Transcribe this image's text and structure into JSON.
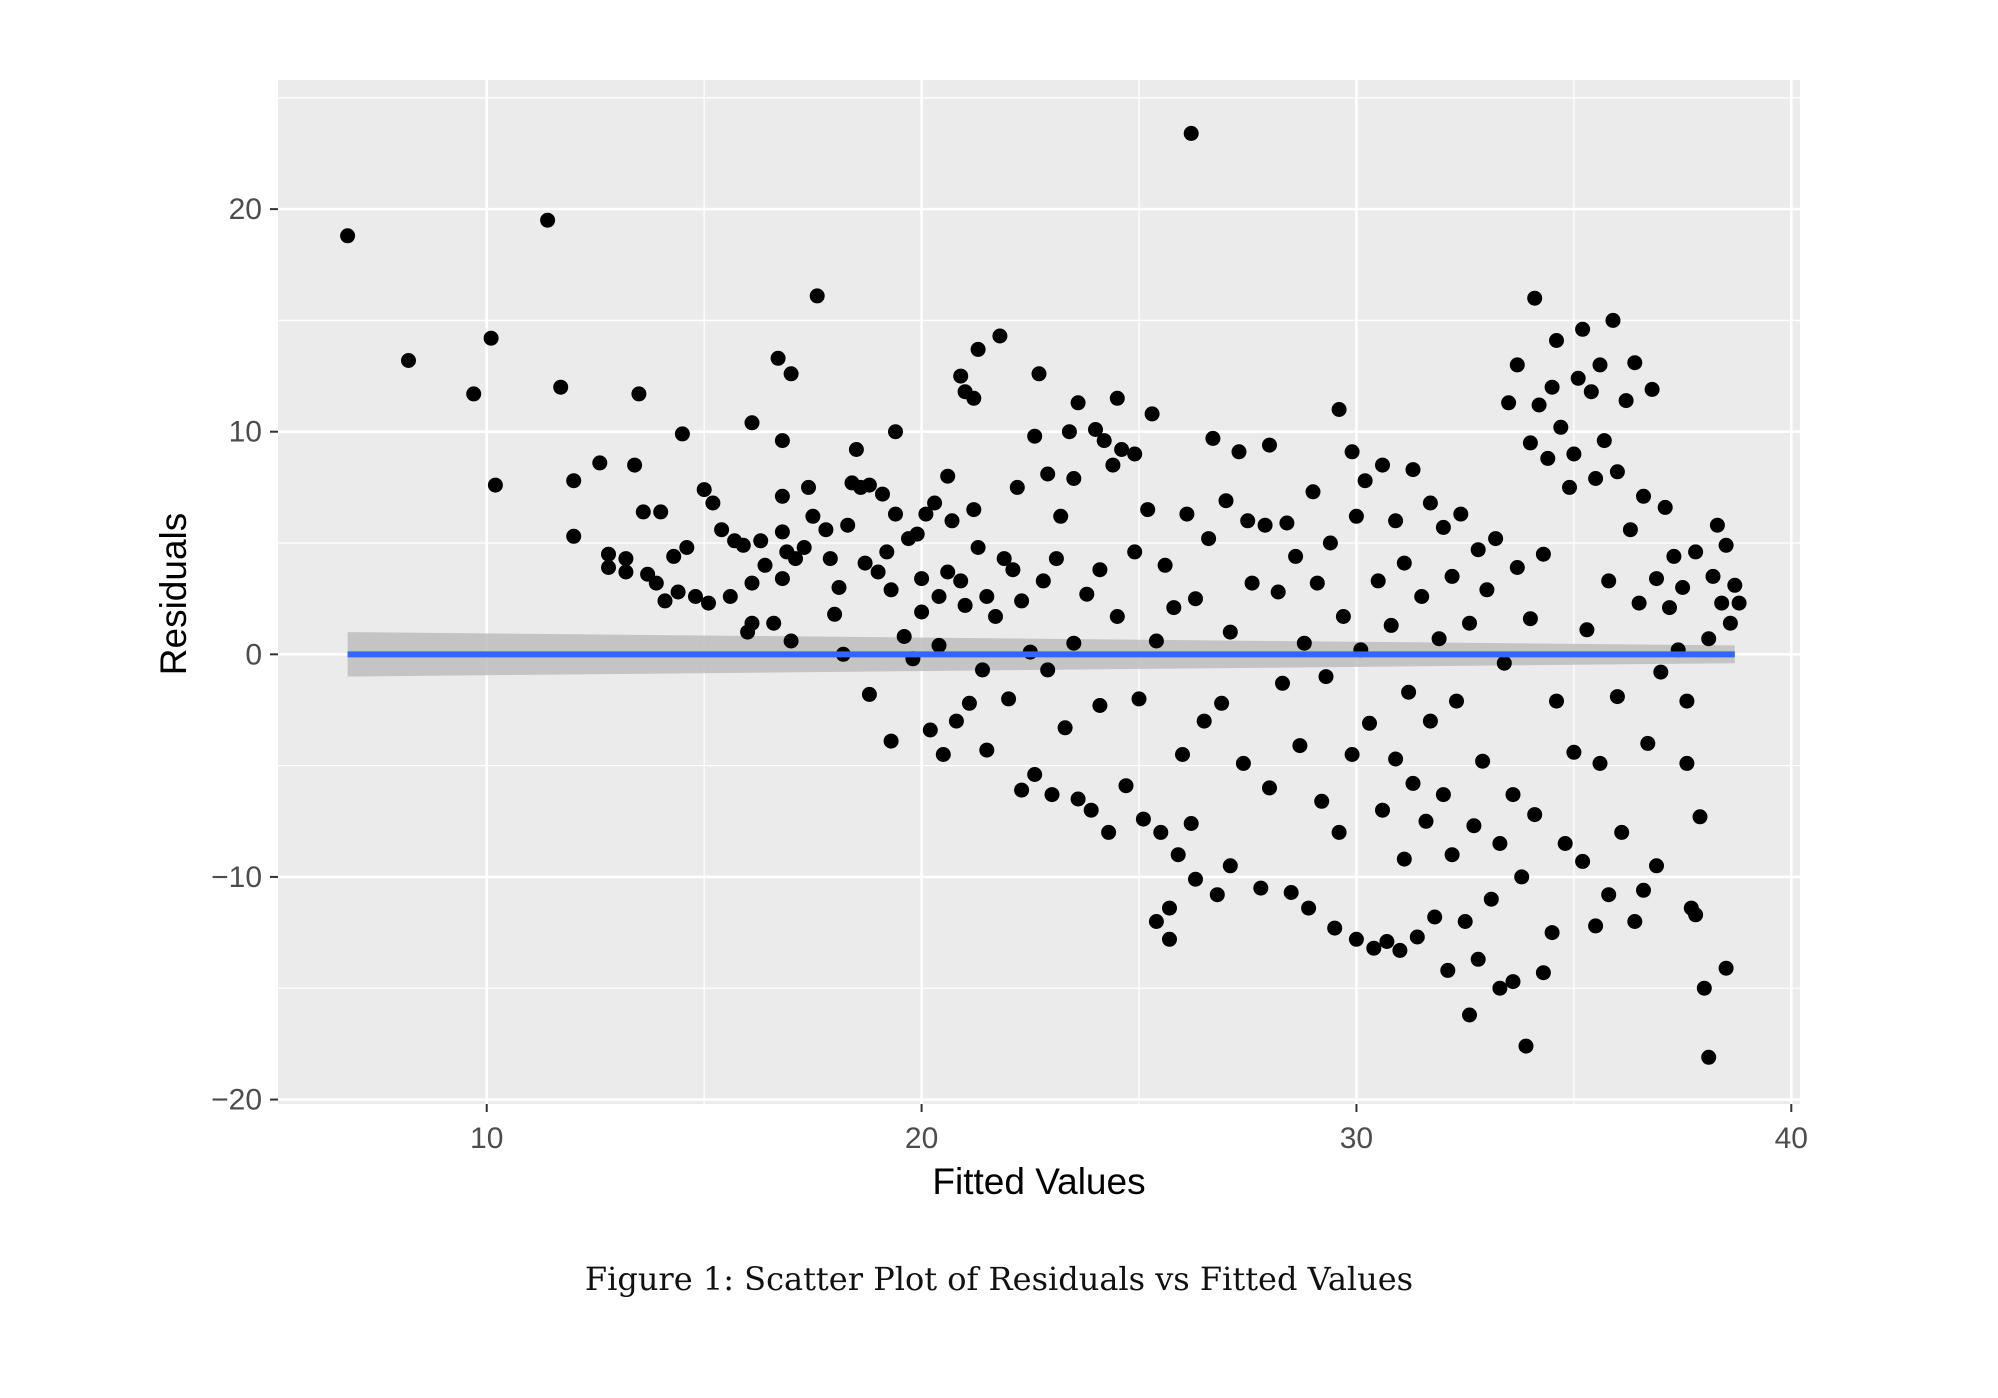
{
  "figure": {
    "caption": "Figure 1: Scatter Plot of Residuals vs Fitted Values"
  },
  "chart_data": {
    "type": "scatter",
    "title": "",
    "xlabel": "Fitted Values",
    "ylabel": "Residuals",
    "xlim": [
      5.2,
      40.2
    ],
    "ylim": [
      -20.2,
      25.8
    ],
    "xticks": [
      10,
      20,
      30,
      40
    ],
    "xtick_labels": [
      "10",
      "20",
      "30",
      "40"
    ],
    "yticks": [
      -20,
      -10,
      0,
      10,
      20
    ],
    "ytick_labels": [
      "−20",
      "−10",
      "0",
      "10",
      "20"
    ],
    "grid": true,
    "legend": "none",
    "colors": {
      "panel": "#ebebeb",
      "grid": "#ffffff",
      "points": "#000000",
      "fit_line": "#3366ff",
      "confidence_band": "#bdbdbd"
    },
    "fit_line": {
      "x": [
        6.8,
        38.7
      ],
      "y": [
        0,
        0
      ],
      "band_upper": [
        1.0,
        0.4
      ],
      "band_lower": [
        -1.0,
        -0.4
      ]
    },
    "series": [
      {
        "points": [
          [
            6.8,
            18.8
          ],
          [
            11.4,
            19.5
          ],
          [
            26.2,
            23.4
          ],
          [
            8.2,
            13.2
          ],
          [
            9.7,
            11.7
          ],
          [
            10.1,
            14.2
          ],
          [
            10.2,
            7.6
          ],
          [
            11.7,
            12.0
          ],
          [
            12.0,
            7.8
          ],
          [
            12.0,
            5.3
          ],
          [
            12.6,
            8.6
          ],
          [
            12.8,
            4.5
          ],
          [
            12.8,
            3.9
          ],
          [
            13.2,
            4.3
          ],
          [
            13.2,
            3.7
          ],
          [
            13.4,
            8.5
          ],
          [
            13.5,
            11.7
          ],
          [
            13.6,
            6.4
          ],
          [
            13.7,
            3.6
          ],
          [
            13.9,
            3.2
          ],
          [
            14.0,
            6.4
          ],
          [
            14.1,
            2.4
          ],
          [
            14.3,
            4.4
          ],
          [
            14.4,
            2.8
          ],
          [
            14.5,
            9.9
          ],
          [
            14.6,
            4.8
          ],
          [
            14.8,
            2.6
          ],
          [
            15.0,
            7.4
          ],
          [
            15.1,
            2.3
          ],
          [
            15.2,
            6.8
          ],
          [
            15.4,
            5.6
          ],
          [
            15.6,
            2.6
          ],
          [
            15.7,
            5.1
          ],
          [
            15.9,
            4.9
          ],
          [
            16.0,
            1.0
          ],
          [
            16.1,
            10.4
          ],
          [
            16.1,
            3.2
          ],
          [
            16.1,
            1.4
          ],
          [
            16.3,
            5.1
          ],
          [
            16.4,
            4.0
          ],
          [
            16.6,
            1.4
          ],
          [
            16.7,
            13.3
          ],
          [
            16.8,
            9.6
          ],
          [
            16.8,
            7.1
          ],
          [
            16.8,
            5.5
          ],
          [
            16.8,
            3.4
          ],
          [
            16.9,
            4.6
          ],
          [
            17.0,
            12.6
          ],
          [
            17.0,
            0.6
          ],
          [
            17.1,
            4.3
          ],
          [
            17.3,
            4.8
          ],
          [
            17.4,
            7.5
          ],
          [
            17.5,
            6.2
          ],
          [
            17.6,
            16.1
          ],
          [
            17.8,
            5.6
          ],
          [
            17.9,
            4.3
          ],
          [
            18.0,
            1.8
          ],
          [
            18.1,
            3.0
          ],
          [
            18.2,
            0.0
          ],
          [
            18.3,
            5.8
          ],
          [
            18.4,
            7.7
          ],
          [
            18.5,
            9.2
          ],
          [
            18.6,
            7.5
          ],
          [
            18.7,
            4.1
          ],
          [
            18.8,
            7.6
          ],
          [
            18.8,
            -1.8
          ],
          [
            19.0,
            3.7
          ],
          [
            19.1,
            7.2
          ],
          [
            19.2,
            4.6
          ],
          [
            19.3,
            2.9
          ],
          [
            19.3,
            -3.9
          ],
          [
            19.4,
            10.0
          ],
          [
            19.4,
            6.3
          ],
          [
            19.6,
            0.8
          ],
          [
            19.7,
            5.2
          ],
          [
            19.8,
            -0.2
          ],
          [
            19.9,
            5.4
          ],
          [
            20.0,
            3.4
          ],
          [
            20.0,
            1.9
          ],
          [
            20.1,
            6.3
          ],
          [
            20.2,
            -3.4
          ],
          [
            20.3,
            6.8
          ],
          [
            20.4,
            2.6
          ],
          [
            20.4,
            0.4
          ],
          [
            20.5,
            -4.5
          ],
          [
            20.6,
            8.0
          ],
          [
            20.6,
            3.7
          ],
          [
            20.7,
            6.0
          ],
          [
            20.8,
            -3.0
          ],
          [
            20.9,
            12.5
          ],
          [
            20.9,
            3.3
          ],
          [
            21.0,
            11.8
          ],
          [
            21.0,
            2.2
          ],
          [
            21.1,
            -2.2
          ],
          [
            21.2,
            6.5
          ],
          [
            21.2,
            11.5
          ],
          [
            21.3,
            13.7
          ],
          [
            21.3,
            4.8
          ],
          [
            21.4,
            -0.7
          ],
          [
            21.5,
            2.6
          ],
          [
            21.5,
            -4.3
          ],
          [
            21.7,
            1.7
          ],
          [
            21.8,
            14.3
          ],
          [
            21.9,
            4.3
          ],
          [
            22.0,
            -2.0
          ],
          [
            22.1,
            3.8
          ],
          [
            22.2,
            7.5
          ],
          [
            22.3,
            2.4
          ],
          [
            22.3,
            -6.1
          ],
          [
            22.5,
            0.1
          ],
          [
            22.6,
            9.8
          ],
          [
            22.6,
            -5.4
          ],
          [
            22.7,
            12.6
          ],
          [
            22.8,
            3.3
          ],
          [
            22.9,
            8.1
          ],
          [
            22.9,
            -0.7
          ],
          [
            23.0,
            -6.3
          ],
          [
            23.1,
            4.3
          ],
          [
            23.2,
            6.2
          ],
          [
            23.3,
            -3.3
          ],
          [
            23.4,
            10.0
          ],
          [
            23.5,
            7.9
          ],
          [
            23.5,
            0.5
          ],
          [
            23.6,
            11.3
          ],
          [
            23.6,
            -6.5
          ],
          [
            23.8,
            2.7
          ],
          [
            23.9,
            -7.0
          ],
          [
            24.0,
            10.1
          ],
          [
            24.1,
            3.8
          ],
          [
            24.1,
            -2.3
          ],
          [
            24.2,
            9.6
          ],
          [
            24.3,
            -8.0
          ],
          [
            24.4,
            8.5
          ],
          [
            24.5,
            11.5
          ],
          [
            24.5,
            1.7
          ],
          [
            24.6,
            9.2
          ],
          [
            24.7,
            -5.9
          ],
          [
            24.9,
            9.0
          ],
          [
            24.9,
            4.6
          ],
          [
            25.0,
            -2.0
          ],
          [
            25.1,
            -7.4
          ],
          [
            25.2,
            6.5
          ],
          [
            25.3,
            10.8
          ],
          [
            25.4,
            0.6
          ],
          [
            25.4,
            -12.0
          ],
          [
            25.5,
            -8.0
          ],
          [
            25.6,
            4.0
          ],
          [
            25.7,
            -11.4
          ],
          [
            25.7,
            -12.8
          ],
          [
            25.8,
            2.1
          ],
          [
            25.9,
            -9.0
          ],
          [
            26.0,
            -4.5
          ],
          [
            26.1,
            6.3
          ],
          [
            26.2,
            -7.6
          ],
          [
            26.3,
            2.5
          ],
          [
            26.3,
            -10.1
          ],
          [
            26.5,
            -3.0
          ],
          [
            26.6,
            5.2
          ],
          [
            26.7,
            9.7
          ],
          [
            26.8,
            -10.8
          ],
          [
            26.9,
            -2.2
          ],
          [
            27.0,
            6.9
          ],
          [
            27.1,
            1.0
          ],
          [
            27.1,
            -9.5
          ],
          [
            27.3,
            9.1
          ],
          [
            27.4,
            -4.9
          ],
          [
            27.5,
            6.0
          ],
          [
            27.6,
            3.2
          ],
          [
            27.8,
            -10.5
          ],
          [
            27.9,
            5.8
          ],
          [
            28.0,
            9.4
          ],
          [
            28.0,
            -6.0
          ],
          [
            28.2,
            2.8
          ],
          [
            28.3,
            -1.3
          ],
          [
            28.4,
            5.9
          ],
          [
            28.5,
            -10.7
          ],
          [
            28.6,
            4.4
          ],
          [
            28.7,
            -4.1
          ],
          [
            28.8,
            0.5
          ],
          [
            28.9,
            -11.4
          ],
          [
            29.0,
            7.3
          ],
          [
            29.1,
            3.2
          ],
          [
            29.2,
            -6.6
          ],
          [
            29.3,
            -1.0
          ],
          [
            29.4,
            5.0
          ],
          [
            29.5,
            -12.3
          ],
          [
            29.6,
            11.0
          ],
          [
            29.6,
            -8.0
          ],
          [
            29.7,
            1.7
          ],
          [
            29.9,
            9.1
          ],
          [
            29.9,
            -4.5
          ],
          [
            30.0,
            6.2
          ],
          [
            30.0,
            -12.8
          ],
          [
            30.1,
            0.2
          ],
          [
            30.2,
            7.8
          ],
          [
            30.3,
            -3.1
          ],
          [
            30.4,
            -13.2
          ],
          [
            30.5,
            3.3
          ],
          [
            30.6,
            8.5
          ],
          [
            30.6,
            -7.0
          ],
          [
            30.7,
            -12.9
          ],
          [
            30.8,
            1.3
          ],
          [
            30.9,
            6.0
          ],
          [
            30.9,
            -4.7
          ],
          [
            31.0,
            -13.3
          ],
          [
            31.1,
            4.1
          ],
          [
            31.1,
            -9.2
          ],
          [
            31.2,
            -1.7
          ],
          [
            31.3,
            8.3
          ],
          [
            31.3,
            -5.8
          ],
          [
            31.4,
            -12.7
          ],
          [
            31.5,
            2.6
          ],
          [
            31.6,
            -7.5
          ],
          [
            31.7,
            6.8
          ],
          [
            31.7,
            -3.0
          ],
          [
            31.8,
            -11.8
          ],
          [
            31.9,
            0.7
          ],
          [
            32.0,
            5.7
          ],
          [
            32.0,
            -6.3
          ],
          [
            32.1,
            -14.2
          ],
          [
            32.2,
            3.5
          ],
          [
            32.2,
            -9.0
          ],
          [
            32.3,
            -2.1
          ],
          [
            32.4,
            6.3
          ],
          [
            32.5,
            -12.0
          ],
          [
            32.6,
            -16.2
          ],
          [
            32.6,
            1.4
          ],
          [
            32.7,
            -7.7
          ],
          [
            32.8,
            4.7
          ],
          [
            32.8,
            -13.7
          ],
          [
            32.9,
            -4.8
          ],
          [
            33.0,
            2.9
          ],
          [
            33.1,
            -11.0
          ],
          [
            33.2,
            5.2
          ],
          [
            33.3,
            -8.5
          ],
          [
            33.3,
            -15.0
          ],
          [
            33.4,
            -0.4
          ],
          [
            33.5,
            11.3
          ],
          [
            33.6,
            -6.3
          ],
          [
            33.6,
            -14.7
          ],
          [
            33.7,
            13.0
          ],
          [
            33.7,
            3.9
          ],
          [
            33.8,
            -10.0
          ],
          [
            33.9,
            -17.6
          ],
          [
            34.0,
            1.6
          ],
          [
            34.0,
            9.5
          ],
          [
            34.1,
            16.0
          ],
          [
            34.1,
            -7.2
          ],
          [
            34.2,
            11.2
          ],
          [
            34.3,
            -14.3
          ],
          [
            34.3,
            4.5
          ],
          [
            34.4,
            8.8
          ],
          [
            34.5,
            -12.5
          ],
          [
            34.5,
            12.0
          ],
          [
            34.6,
            14.1
          ],
          [
            34.6,
            -2.1
          ],
          [
            34.7,
            10.2
          ],
          [
            34.8,
            -8.5
          ],
          [
            34.9,
            7.5
          ],
          [
            35.0,
            9.0
          ],
          [
            35.0,
            -4.4
          ],
          [
            35.1,
            12.4
          ],
          [
            35.2,
            14.6
          ],
          [
            35.2,
            -9.3
          ],
          [
            35.3,
            1.1
          ],
          [
            35.4,
            11.8
          ],
          [
            35.5,
            7.9
          ],
          [
            35.5,
            -12.2
          ],
          [
            35.6,
            13.0
          ],
          [
            35.6,
            -4.9
          ],
          [
            35.7,
            9.6
          ],
          [
            35.8,
            3.3
          ],
          [
            35.8,
            -10.8
          ],
          [
            35.9,
            15.0
          ],
          [
            36.0,
            8.2
          ],
          [
            36.0,
            -1.9
          ],
          [
            36.1,
            -8.0
          ],
          [
            36.2,
            11.4
          ],
          [
            36.3,
            5.6
          ],
          [
            36.4,
            -12.0
          ],
          [
            36.4,
            13.1
          ],
          [
            36.5,
            2.3
          ],
          [
            36.6,
            7.1
          ],
          [
            36.6,
            -10.6
          ],
          [
            36.7,
            -4.0
          ],
          [
            36.8,
            11.9
          ],
          [
            36.9,
            3.4
          ],
          [
            36.9,
            -9.5
          ],
          [
            37.0,
            -0.8
          ],
          [
            37.1,
            6.6
          ],
          [
            37.2,
            2.1
          ],
          [
            37.3,
            4.4
          ],
          [
            37.4,
            0.2
          ],
          [
            37.5,
            3.0
          ],
          [
            37.6,
            -2.1
          ],
          [
            37.6,
            -4.9
          ],
          [
            37.7,
            -11.4
          ],
          [
            37.8,
            4.6
          ],
          [
            37.8,
            -11.7
          ],
          [
            37.9,
            -7.3
          ],
          [
            38.0,
            -15.0
          ],
          [
            38.1,
            -18.1
          ],
          [
            38.1,
            0.7
          ],
          [
            38.2,
            3.5
          ],
          [
            38.3,
            5.8
          ],
          [
            38.4,
            2.3
          ],
          [
            38.5,
            -14.1
          ],
          [
            38.5,
            4.9
          ],
          [
            38.6,
            1.4
          ],
          [
            38.7,
            3.1
          ],
          [
            38.8,
            2.3
          ]
        ]
      }
    ]
  }
}
